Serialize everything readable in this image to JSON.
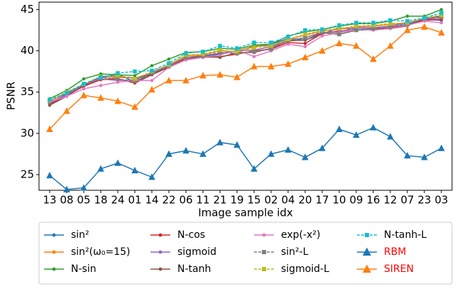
{
  "chart_data": {
    "type": "line",
    "x_label": "Image sample idx",
    "y_label": "PSNR",
    "categories": [
      "13",
      "08",
      "05",
      "18",
      "24",
      "01",
      "14",
      "22",
      "06",
      "11",
      "21",
      "19",
      "15",
      "02",
      "04",
      "20",
      "17",
      "10",
      "09",
      "16",
      "12",
      "07",
      "23",
      "03"
    ],
    "ylim": [
      23.1,
      45.9
    ],
    "yticks": [
      25,
      30,
      35,
      40,
      45
    ],
    "series": [
      {
        "name": "sin²",
        "color": "#1f77b4",
        "marker": "circle",
        "linestyle": "solid",
        "values": [
          33.6,
          34.8,
          35.8,
          36.7,
          37.2,
          36.2,
          37.3,
          38.0,
          39.0,
          39.3,
          39.6,
          40.0,
          40.5,
          40.8,
          41.5,
          41.3,
          42.0,
          42.8,
          42.6,
          42.7,
          42.8,
          43.2,
          43.8,
          43.7
        ]
      },
      {
        "name": "sin²(ω₀=15)",
        "color": "#ff7f0e",
        "marker": "circle",
        "linestyle": "solid",
        "values": [
          33.9,
          34.9,
          35.9,
          36.5,
          36.8,
          36.7,
          37.3,
          38.3,
          39.4,
          39.5,
          40.0,
          39.9,
          40.6,
          40.6,
          41.4,
          41.9,
          42.4,
          42.6,
          42.9,
          43.0,
          43.2,
          43.4,
          43.8,
          44.3
        ]
      },
      {
        "name": "N-sin",
        "color": "#2ca02c",
        "marker": "circle",
        "linestyle": "solid",
        "values": [
          34.2,
          35.2,
          36.6,
          37.2,
          37.1,
          37.0,
          38.2,
          39.0,
          39.8,
          39.9,
          40.3,
          40.2,
          40.7,
          40.8,
          41.8,
          42.3,
          42.6,
          43.0,
          43.3,
          43.3,
          43.6,
          44.2,
          44.2,
          45.0
        ]
      },
      {
        "name": "N-cos",
        "color": "#d62728",
        "marker": "circle",
        "linestyle": "solid",
        "values": [
          33.5,
          34.6,
          35.7,
          36.5,
          36.6,
          36.1,
          37.1,
          38.1,
          39.0,
          39.2,
          39.3,
          39.6,
          40.0,
          40.2,
          41.0,
          40.9,
          42.1,
          42.4,
          42.5,
          42.6,
          42.8,
          43.1,
          43.7,
          43.8
        ]
      },
      {
        "name": "sigmoid",
        "color": "#9467bd",
        "marker": "circle",
        "linestyle": "solid",
        "values": [
          33.7,
          34.7,
          35.9,
          36.6,
          36.4,
          36.5,
          37.3,
          38.2,
          39.2,
          39.4,
          39.7,
          40.0,
          40.1,
          40.5,
          41.2,
          41.6,
          42.2,
          42.3,
          42.8,
          42.8,
          43.0,
          43.4,
          43.8,
          44.0
        ]
      },
      {
        "name": "N-tanh",
        "color": "#8c564b",
        "marker": "circle",
        "linestyle": "solid",
        "values": [
          33.4,
          34.5,
          35.8,
          36.9,
          36.9,
          36.7,
          37.1,
          38.0,
          39.2,
          39.3,
          39.2,
          39.8,
          39.8,
          40.3,
          41.2,
          41.3,
          42.2,
          42.0,
          42.5,
          42.6,
          42.7,
          43.0,
          43.9,
          44.2
        ]
      },
      {
        "name": "exp(-x²)",
        "color": "#e377c2",
        "marker": "circle",
        "linestyle": "solid",
        "values": [
          33.8,
          34.5,
          35.4,
          35.8,
          36.2,
          36.4,
          36.4,
          38.0,
          38.9,
          39.2,
          39.5,
          40.1,
          39.3,
          40.0,
          40.8,
          40.5,
          41.8,
          42.2,
          42.6,
          42.5,
          42.7,
          43.1,
          43.6,
          43.4
        ]
      },
      {
        "name": "sin²-L",
        "color": "#7f7f7f",
        "marker": "square",
        "linestyle": "dashed",
        "values": [
          33.9,
          34.9,
          35.9,
          36.8,
          36.6,
          36.3,
          37.4,
          38.2,
          39.2,
          39.4,
          39.8,
          39.7,
          39.9,
          40.2,
          41.3,
          41.6,
          42.3,
          42.0,
          42.5,
          42.7,
          42.9,
          43.3,
          43.9,
          44.1
        ]
      },
      {
        "name": "sigmoid-L",
        "color": "#bcbd22",
        "marker": "square",
        "linestyle": "dashed",
        "values": [
          34.0,
          35.0,
          36.0,
          36.9,
          37.0,
          36.6,
          37.5,
          38.3,
          39.5,
          39.6,
          40.1,
          39.9,
          40.4,
          40.6,
          41.4,
          42.0,
          42.5,
          42.7,
          43.0,
          43.1,
          43.3,
          43.4,
          44.0,
          44.3
        ]
      },
      {
        "name": "N-tanh-L",
        "color": "#17becf",
        "marker": "square",
        "linestyle": "dashed",
        "values": [
          34.1,
          34.9,
          36.0,
          36.8,
          37.3,
          37.5,
          37.6,
          38.5,
          39.7,
          39.9,
          40.6,
          40.3,
          41.0,
          41.0,
          41.7,
          42.5,
          42.6,
          43.1,
          43.4,
          43.4,
          43.7,
          43.6,
          44.0,
          44.6
        ]
      },
      {
        "name": "RBM",
        "color": "#1f77b4",
        "marker": "triangle",
        "linestyle": "solid",
        "label_color": "#ff0000",
        "values": [
          24.9,
          23.2,
          23.4,
          25.7,
          26.4,
          25.5,
          24.7,
          27.5,
          27.9,
          27.5,
          28.9,
          28.6,
          25.7,
          27.5,
          28.0,
          27.1,
          28.2,
          30.5,
          29.8,
          30.7,
          29.6,
          27.3,
          27.1,
          28.2
        ]
      },
      {
        "name": "SIREN",
        "color": "#ff7f0e",
        "marker": "triangle",
        "linestyle": "solid",
        "label_color": "#ff0000",
        "values": [
          30.5,
          32.7,
          34.6,
          34.3,
          33.9,
          33.2,
          35.3,
          36.4,
          36.4,
          37.0,
          37.1,
          36.8,
          38.1,
          38.1,
          38.4,
          39.2,
          40.0,
          40.9,
          40.6,
          39.0,
          40.6,
          42.5,
          42.9,
          42.2
        ]
      }
    ],
    "legend_position": "below"
  }
}
